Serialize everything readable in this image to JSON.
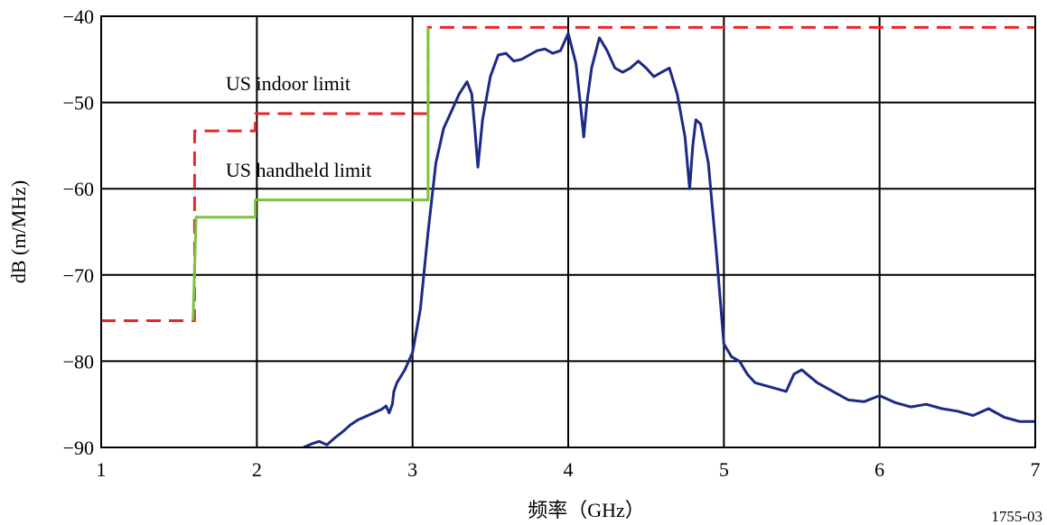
{
  "chart_data": {
    "type": "line",
    "title": "",
    "xlabel": "频率（GHz）",
    "ylabel": "dB (m/MHz)",
    "xlim": [
      1,
      7
    ],
    "ylim": [
      -90,
      -40
    ],
    "xticks": [
      1,
      2,
      3,
      4,
      5,
      6,
      7
    ],
    "yticks": [
      -90,
      -80,
      -70,
      -60,
      -50,
      -40
    ],
    "xtick_labels": [
      "1",
      "2",
      "3",
      "4",
      "5",
      "6",
      "7"
    ],
    "ytick_labels": [
      "−90",
      "−80",
      "−70",
      "−60",
      "−50",
      "−40"
    ],
    "grid": true,
    "annotations": [
      {
        "text": "US indoor limit",
        "x": 1.8,
        "y": -48.6
      },
      {
        "text": "US handheld limit",
        "x": 1.8,
        "y": -58.6
      }
    ],
    "figure_id": "1755-03",
    "series": [
      {
        "color": "#e8262a",
        "style": "dashed",
        "x": [
          1.0,
          1.6,
          1.6,
          1.99,
          1.99,
          3.1,
          3.1,
          7.0
        ],
        "y": [
          -75.3,
          -75.3,
          -53.3,
          -53.3,
          -51.3,
          -51.3,
          -41.3,
          -41.3
        ]
      },
      {
        "color": "#7cc242",
        "style": "solid",
        "x": [
          1.59,
          1.61,
          1.99,
          1.99,
          3.1,
          3.1
        ],
        "y": [
          -75.3,
          -63.3,
          -63.3,
          -61.3,
          -61.3,
          -41.3
        ]
      },
      {
        "color": "#1c2a86",
        "style": "solid",
        "x": [
          2.3,
          2.35,
          2.4,
          2.45,
          2.5,
          2.55,
          2.6,
          2.65,
          2.7,
          2.75,
          2.8,
          2.83,
          2.85,
          2.87,
          2.88,
          2.9,
          2.95,
          3.0,
          3.05,
          3.1,
          3.15,
          3.2,
          3.25,
          3.3,
          3.35,
          3.38,
          3.4,
          3.42,
          3.45,
          3.5,
          3.55,
          3.6,
          3.65,
          3.7,
          3.75,
          3.8,
          3.85,
          3.9,
          3.95,
          4.0,
          4.05,
          4.08,
          4.1,
          4.12,
          4.15,
          4.2,
          4.25,
          4.3,
          4.35,
          4.4,
          4.45,
          4.5,
          4.55,
          4.6,
          4.65,
          4.7,
          4.75,
          4.78,
          4.8,
          4.82,
          4.85,
          4.9,
          4.95,
          5.0,
          5.05,
          5.1,
          5.15,
          5.2,
          5.3,
          5.4,
          5.45,
          5.5,
          5.6,
          5.7,
          5.8,
          5.9,
          6.0,
          6.1,
          6.2,
          6.3,
          6.4,
          6.5,
          6.6,
          6.7,
          6.8,
          6.9,
          7.0
        ],
        "y": [
          -90.0,
          -89.6,
          -89.3,
          -89.7,
          -88.9,
          -88.2,
          -87.4,
          -86.8,
          -86.4,
          -86.0,
          -85.6,
          -85.2,
          -86.0,
          -85.0,
          -83.5,
          -82.5,
          -81.0,
          -79.0,
          -74.0,
          -65.0,
          -57.0,
          -53.0,
          -51.0,
          -49.0,
          -47.6,
          -49.0,
          -53.0,
          -57.5,
          -52.0,
          -47.0,
          -44.5,
          -44.3,
          -45.2,
          -45.0,
          -44.5,
          -44.0,
          -43.8,
          -44.3,
          -44.0,
          -42.0,
          -45.5,
          -50.5,
          -54.0,
          -50.0,
          -46.0,
          -42.5,
          -44.0,
          -46.0,
          -46.5,
          -46.0,
          -45.2,
          -46.0,
          -47.0,
          -46.5,
          -46.0,
          -49.0,
          -54.0,
          -60.0,
          -55.0,
          -52.0,
          -52.5,
          -57.0,
          -67.0,
          -78.0,
          -79.5,
          -80.0,
          -81.5,
          -82.5,
          -83.0,
          -83.5,
          -81.5,
          -81.0,
          -82.5,
          -83.5,
          -84.5,
          -84.7,
          -84.0,
          -84.8,
          -85.3,
          -85.0,
          -85.5,
          -85.8,
          -86.3,
          -85.5,
          -86.5,
          -87.0,
          -87.0
        ]
      }
    ]
  }
}
